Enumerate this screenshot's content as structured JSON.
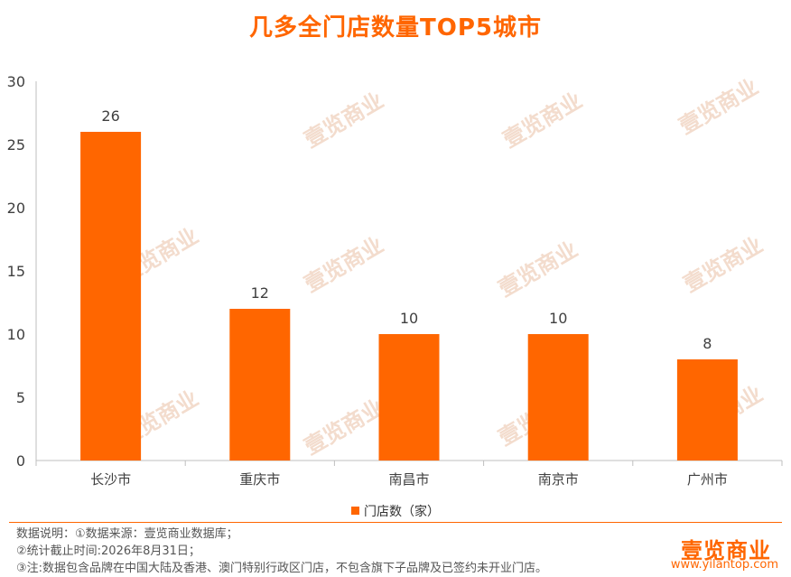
{
  "chart_data": {
    "type": "bar",
    "title": "几多全门店数量TOP5城市",
    "categories": [
      "长沙市",
      "重庆市",
      "南昌市",
      "南京市",
      "广州市"
    ],
    "series": [
      {
        "name": "门店数（家）",
        "values": [
          26,
          12,
          10,
          10,
          8
        ]
      }
    ],
    "ylim": [
      0,
      30
    ],
    "yticks": [
      0,
      5,
      10,
      15,
      20,
      25,
      30
    ],
    "xlabel": "",
    "ylabel": "",
    "grid": false,
    "legend_position": "bottom",
    "bar_color": "#ff6600"
  },
  "footer": {
    "notes": [
      "数据说明：①数据来源：壹览商业数据库；",
      "②统计截止时间:2026年8月31日；",
      "③注:数据包含品牌在中国大陆及香港、澳门特别行政区门店，不包含旗下子品牌及已签约未开业门店。"
    ],
    "brand": "壹览商业",
    "url": "www.yilantop.com"
  },
  "watermark_text": "壹览商业"
}
